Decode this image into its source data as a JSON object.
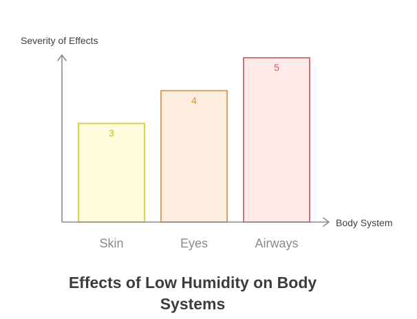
{
  "chart_data": {
    "type": "bar",
    "title": "Effects of Low Humidity on Body Systems",
    "xlabel": "Body System",
    "ylabel": "Severity of Effects",
    "categories": [
      "Skin",
      "Eyes",
      "Airways"
    ],
    "values": [
      3,
      4,
      5
    ],
    "ylim": [
      0,
      5
    ],
    "grid": false,
    "bar_styles": [
      {
        "fill": "#fffbdc",
        "stroke": "#d9cd33",
        "label_color": "#cdbd16"
      },
      {
        "fill": "#ffeee0",
        "stroke": "#d99a4a",
        "label_color": "#d9912e"
      },
      {
        "fill": "#ffe9e9",
        "stroke": "#cf6565",
        "label_color": "#d95a5a"
      }
    ],
    "axis_color": "#8a8a8a"
  }
}
